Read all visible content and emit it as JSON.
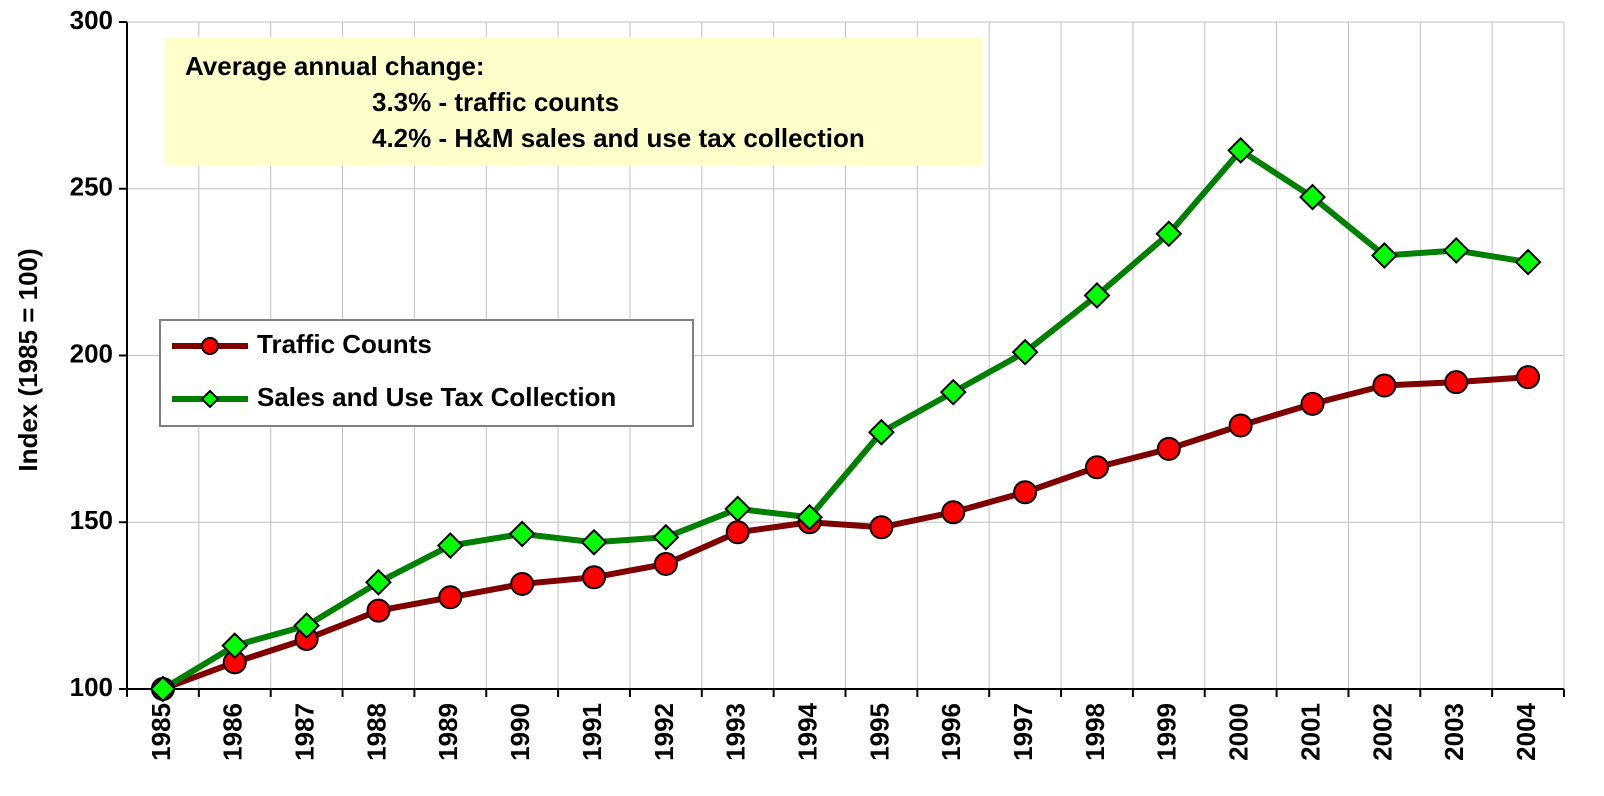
{
  "chart_data": {
    "type": "line",
    "y_label": "Index (1985 = 100)",
    "categories": [
      "1985",
      "1986",
      "1987",
      "1988",
      "1989",
      "1990",
      "1991",
      "1992",
      "1993",
      "1994",
      "1995",
      "1996",
      "1997",
      "1998",
      "1999",
      "2000",
      "2001",
      "2002",
      "2003",
      "2004"
    ],
    "series": [
      {
        "name": "Traffic Counts",
        "color": "#800000",
        "marker_color": "#ff0000",
        "marker": "circle",
        "values": [
          100,
          108,
          115,
          123.5,
          127.5,
          131.5,
          133.5,
          137.5,
          147,
          150,
          148.5,
          153,
          159,
          166.5,
          172,
          179,
          185.5,
          191,
          192,
          193.5
        ]
      },
      {
        "name": "Sales and Use Tax Collection",
        "color": "#008000",
        "marker_color": "#00ff00",
        "marker": "diamond",
        "values": [
          100,
          113,
          119,
          132,
          143,
          146.5,
          144,
          145.5,
          154,
          151.5,
          177,
          189,
          201,
          218,
          236.5,
          261.5,
          247.5,
          230,
          231.5,
          228
        ]
      }
    ],
    "ylim": [
      100,
      300
    ],
    "yticks": [
      100,
      150,
      200,
      250,
      300
    ],
    "grid": true,
    "legend": "center left",
    "annotation": [
      "Average annual change:",
      "3.3% - traffic counts",
      "4.2% - H&M sales and use tax collection"
    ]
  }
}
